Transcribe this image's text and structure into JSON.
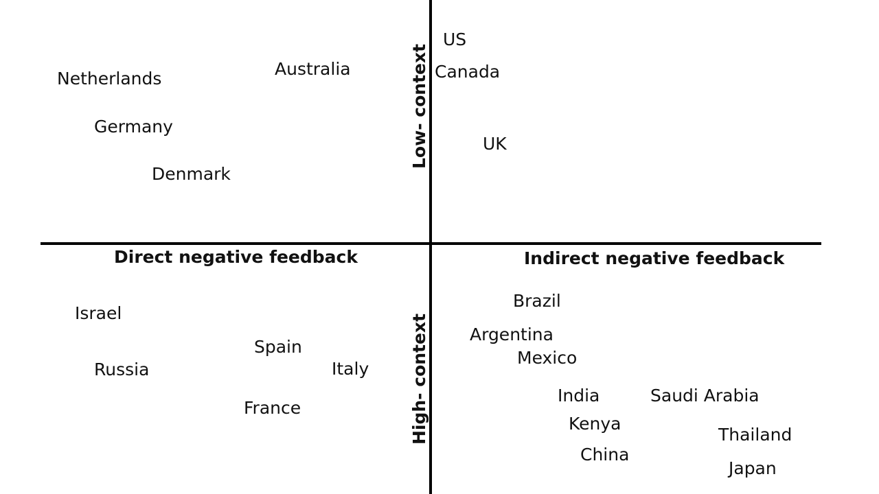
{
  "axes": {
    "top": "Low- context",
    "bottom": "High- context",
    "left": "Direct negative feedback",
    "right": "Indirect negative feedback"
  },
  "countries": {
    "us": "US",
    "canada": "Canada",
    "uk": "UK",
    "netherlands": "Netherlands",
    "australia": "Australia",
    "germany": "Germany",
    "denmark": "Denmark",
    "israel": "Israel",
    "spain": "Spain",
    "russia": "Russia",
    "italy": "Italy",
    "france": "France",
    "brazil": "Brazil",
    "argentina": "Argentina",
    "mexico": "Mexico",
    "india": "India",
    "saudi_arabia": "Saudi Arabia",
    "kenya": "Kenya",
    "thailand": "Thailand",
    "china": "China",
    "japan": "Japan"
  }
}
